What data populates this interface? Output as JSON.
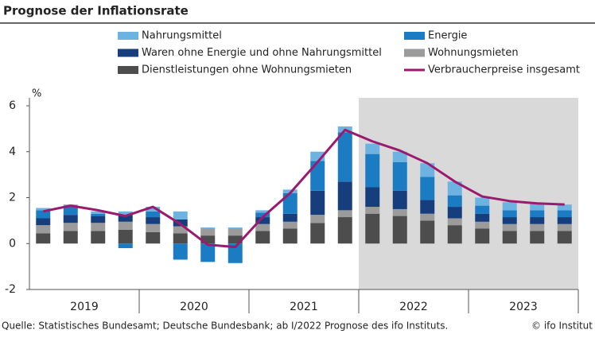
{
  "chart_data": {
    "type": "stacked-bar-line",
    "title": "Prognose der Inflationsrate",
    "y_unit": "%",
    "categories": [
      null,
      null,
      null,
      null,
      null,
      null,
      null,
      null,
      null,
      null,
      null,
      null,
      null,
      null,
      null,
      null,
      null,
      null,
      null,
      null
    ],
    "year_labels": [
      "2019",
      "2020",
      "2021",
      "2022",
      "2023"
    ],
    "forecast_from_index": 12,
    "ylim": [
      -2,
      6
    ],
    "yticks": [
      -2,
      0,
      2,
      4,
      6
    ],
    "grid": false,
    "series": [
      {
        "name": "Nahrungsmittel",
        "type": "bar",
        "color": "#6db3e2",
        "values": [
          0.1,
          0.05,
          0.1,
          0.15,
          0.2,
          0.35,
          0.05,
          0.05,
          0.1,
          0.15,
          0.4,
          0.25,
          0.45,
          0.45,
          0.6,
          0.6,
          0.35,
          0.35,
          0.3,
          0.25
        ]
      },
      {
        "name": "Energie",
        "type": "bar",
        "color": "#1b7cc4",
        "values": [
          0.35,
          0.4,
          0.1,
          -0.2,
          0.25,
          -0.7,
          -0.8,
          -0.85,
          0.2,
          0.9,
          1.3,
          2.15,
          1.45,
          1.25,
          1.0,
          0.5,
          0.35,
          0.3,
          0.3,
          0.3
        ]
      },
      {
        "name": "Waren ohne Energie und ohne Nahrungsmittel",
        "type": "bar",
        "color": "#173e7c",
        "values": [
          0.3,
          0.35,
          0.3,
          0.3,
          0.3,
          0.3,
          0.0,
          0.0,
          0.3,
          0.35,
          1.05,
          1.25,
          0.85,
          0.8,
          0.6,
          0.5,
          0.35,
          0.3,
          0.3,
          0.3
        ]
      },
      {
        "name": "Wohnungsmieten",
        "type": "bar",
        "color": "#9b9b9b",
        "values": [
          0.35,
          0.35,
          0.35,
          0.35,
          0.35,
          0.3,
          0.3,
          0.3,
          0.3,
          0.3,
          0.35,
          0.3,
          0.3,
          0.3,
          0.3,
          0.3,
          0.3,
          0.3,
          0.3,
          0.3
        ]
      },
      {
        "name": "Dienstleistungen ohne Wohnungsmieten",
        "type": "bar",
        "color": "#4d4d4d",
        "values": [
          0.45,
          0.55,
          0.55,
          0.6,
          0.5,
          0.45,
          0.35,
          0.35,
          0.55,
          0.65,
          0.9,
          1.15,
          1.3,
          1.2,
          1.0,
          0.8,
          0.65,
          0.55,
          0.55,
          0.55
        ]
      },
      {
        "name": "Verbraucherpreise insgesamt",
        "type": "line",
        "color": "#9c1a6e",
        "values": [
          1.4,
          1.65,
          1.45,
          1.2,
          1.6,
          0.85,
          -0.05,
          -0.15,
          1.15,
          2.2,
          3.55,
          4.95,
          4.45,
          4.05,
          3.5,
          2.7,
          2.05,
          1.85,
          1.75,
          1.7
        ]
      }
    ],
    "source": "Quelle: Statistisches Bundesamt; Deutsche Bundesbank; ab I/2022 Prognose des ifo Instituts.",
    "copyright": "© ifo Institut"
  }
}
